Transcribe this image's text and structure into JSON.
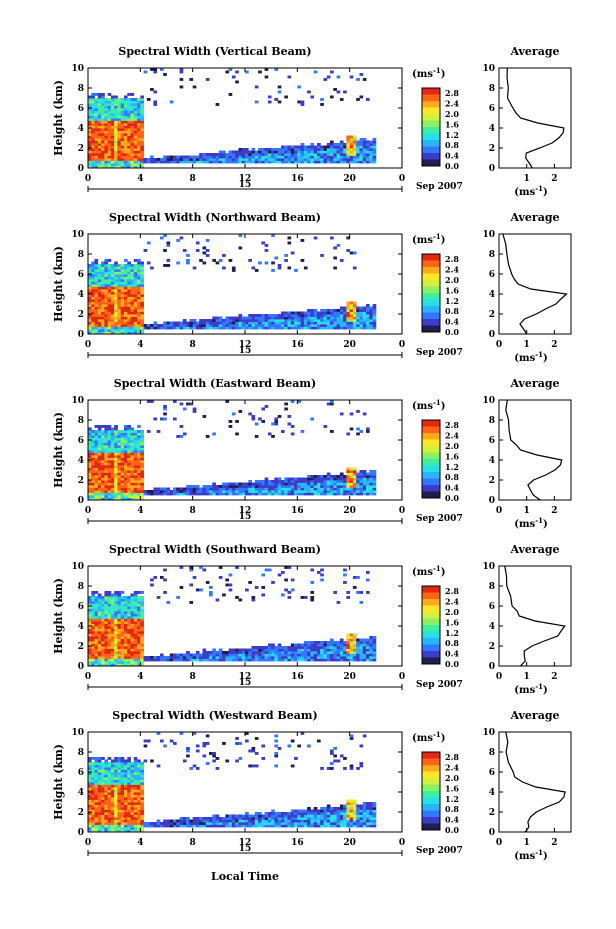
{
  "figure": {
    "xlabel": "Local Time",
    "ylabel": "Height (km)",
    "date_day": "15",
    "date_label": "Sep 2007",
    "cb_unit": "(ms",
    "cb_exp": "-1",
    "cb_ticks": [
      "0.0",
      "0.4",
      "0.8",
      "1.2",
      "1.6",
      "2.0",
      "2.4",
      "2.8"
    ],
    "avg_title": "Average",
    "avg_xlabel": "(ms",
    "avg_xlabel_exp": "-1",
    "x_ticks": [
      "0",
      "4",
      "8",
      "12",
      "16",
      "20",
      "0"
    ],
    "y_ticks": [
      "0",
      "2",
      "4",
      "6",
      "8",
      "10"
    ]
  },
  "colors": {
    "colormap": [
      "#1e1e50",
      "#3c3cc8",
      "#3278ff",
      "#28b4ff",
      "#28e1e6",
      "#3cf0a0",
      "#8cf064",
      "#d2f03c",
      "#ffe628",
      "#ffaa1e",
      "#ff6414",
      "#e12814"
    ]
  },
  "chart_data": [
    {
      "type": "heatmap",
      "title": "Spectral Width (Vertical Beam)",
      "x": "Local Time (h)",
      "xlim": [
        0,
        24
      ],
      "ylim": [
        0,
        10
      ],
      "clim": [
        0.0,
        3.0
      ],
      "avg_title": "Average",
      "avg_xticks": [
        "1",
        "2"
      ],
      "avg_xlim": [
        0,
        2.6
      ],
      "avg_profile": {
        "height_km": [
          0,
          0.5,
          1,
          1.5,
          2,
          2.5,
          3,
          3.5,
          4,
          4.5,
          5,
          5.5,
          6,
          7,
          8,
          9,
          10
        ],
        "width": [
          1.2,
          1.1,
          1.0,
          1.0,
          1.4,
          1.9,
          2.2,
          2.3,
          2.4,
          1.4,
          0.8,
          0.6,
          0.5,
          0.35,
          0.3,
          0.25,
          0.25
        ]
      }
    },
    {
      "type": "heatmap",
      "title": "Spectral Width (Northward Beam)",
      "xlim": [
        0,
        24
      ],
      "ylim": [
        0,
        10
      ],
      "clim": [
        0.0,
        3.0
      ],
      "avg_title": "Average",
      "avg_xticks": [
        "0",
        "1",
        "2"
      ],
      "avg_xlim": [
        0,
        2.6
      ],
      "avg_profile": {
        "height_km": [
          0,
          0.5,
          1,
          1.5,
          2,
          2.5,
          3,
          3.5,
          4,
          4.5,
          5,
          5.5,
          6,
          7,
          8,
          9,
          10
        ],
        "width": [
          1.0,
          0.9,
          0.8,
          0.9,
          1.3,
          1.7,
          2.1,
          2.3,
          2.4,
          1.2,
          0.7,
          0.55,
          0.45,
          0.3,
          0.25,
          0.2,
          0.2
        ]
      }
    },
    {
      "type": "heatmap",
      "title": "Spectral Width (Eastward Beam)",
      "xlim": [
        0,
        24
      ],
      "ylim": [
        0,
        10
      ],
      "clim": [
        0.0,
        3.0
      ],
      "avg_title": "Average",
      "avg_xticks": [
        "0",
        "1",
        "2"
      ],
      "avg_xlim": [
        0,
        2.6
      ],
      "avg_profile": {
        "height_km": [
          0,
          0.5,
          1,
          1.5,
          2,
          2.5,
          3,
          3.5,
          4,
          4.5,
          5,
          5.5,
          6,
          7,
          8,
          9,
          10
        ],
        "width": [
          1.5,
          1.3,
          1.1,
          1.0,
          1.3,
          1.7,
          2.0,
          2.2,
          2.3,
          1.3,
          0.8,
          0.6,
          0.5,
          0.35,
          0.3,
          0.25,
          0.25
        ]
      }
    },
    {
      "type": "heatmap",
      "title": "Spectral Width (Southward Beam)",
      "xlim": [
        0,
        24
      ],
      "ylim": [
        0,
        10
      ],
      "clim": [
        0.0,
        3.0
      ],
      "avg_title": "Average",
      "avg_xticks": [
        "0",
        "1",
        "2"
      ],
      "avg_xlim": [
        0,
        2.6
      ],
      "avg_profile": {
        "height_km": [
          0,
          0.5,
          1,
          1.5,
          2,
          2.5,
          3,
          3.5,
          4,
          4.5,
          5,
          5.5,
          6,
          7,
          8,
          9,
          10
        ],
        "width": [
          0.8,
          1.0,
          0.9,
          0.9,
          1.2,
          1.7,
          2.1,
          2.3,
          2.4,
          1.3,
          0.8,
          0.6,
          0.5,
          0.35,
          0.3,
          0.25,
          0.25
        ]
      }
    },
    {
      "type": "heatmap",
      "title": "Spectral Width (Westward Beam)",
      "xlim": [
        0,
        24
      ],
      "ylim": [
        0,
        10
      ],
      "clim": [
        0.0,
        3.0
      ],
      "avg_title": "Average",
      "avg_xticks": [
        "0",
        "1",
        "2"
      ],
      "avg_xlim": [
        0,
        2.6
      ],
      "avg_profile": {
        "height_km": [
          0,
          0.5,
          1,
          1.5,
          2,
          2.5,
          3,
          3.5,
          4,
          4.5,
          5,
          5.5,
          6,
          7,
          8,
          9,
          10
        ],
        "width": [
          1.0,
          1.1,
          1.0,
          1.1,
          1.4,
          1.8,
          2.1,
          2.3,
          2.4,
          1.3,
          0.8,
          0.6,
          0.5,
          0.35,
          0.3,
          0.25,
          0.25
        ]
      }
    }
  ]
}
